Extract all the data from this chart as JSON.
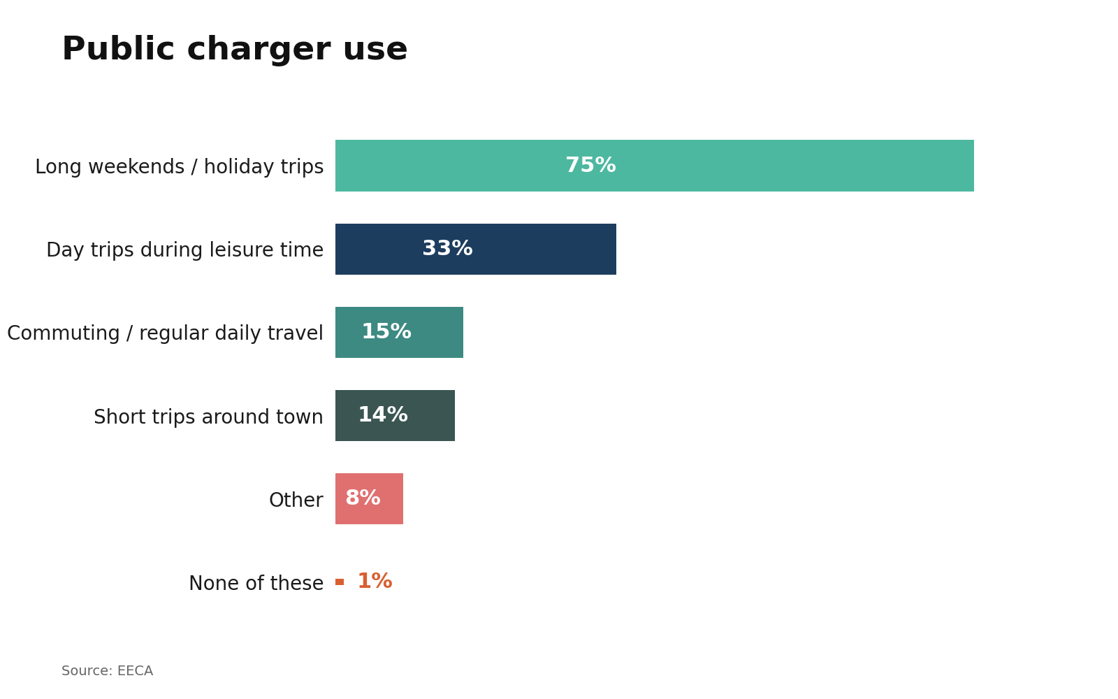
{
  "title": "Public charger use",
  "source": "Source: EECA",
  "categories": [
    "Long weekends / holiday trips",
    "Day trips during leisure time",
    "Commuting / regular daily travel",
    "Short trips around town",
    "Other",
    "None of these"
  ],
  "values": [
    75,
    33,
    15,
    14,
    8,
    1
  ],
  "bar_colors": [
    "#4db8a0",
    "#1d3d5e",
    "#3d8a82",
    "#3a5552",
    "#e07070",
    "#d95f30"
  ],
  "label_colors": [
    "#ffffff",
    "#ffffff",
    "#ffffff",
    "#ffffff",
    "#ffffff",
    "#d95f30"
  ],
  "label_inside": [
    true,
    true,
    true,
    true,
    true,
    false
  ],
  "background_color": "#ffffff",
  "title_fontsize": 34,
  "label_fontsize": 20,
  "value_fontsize": 22,
  "source_fontsize": 14,
  "bar_height": 0.62,
  "thin_bar_height": 0.08,
  "xlim": [
    0,
    88
  ],
  "figsize": [
    16,
    10
  ]
}
